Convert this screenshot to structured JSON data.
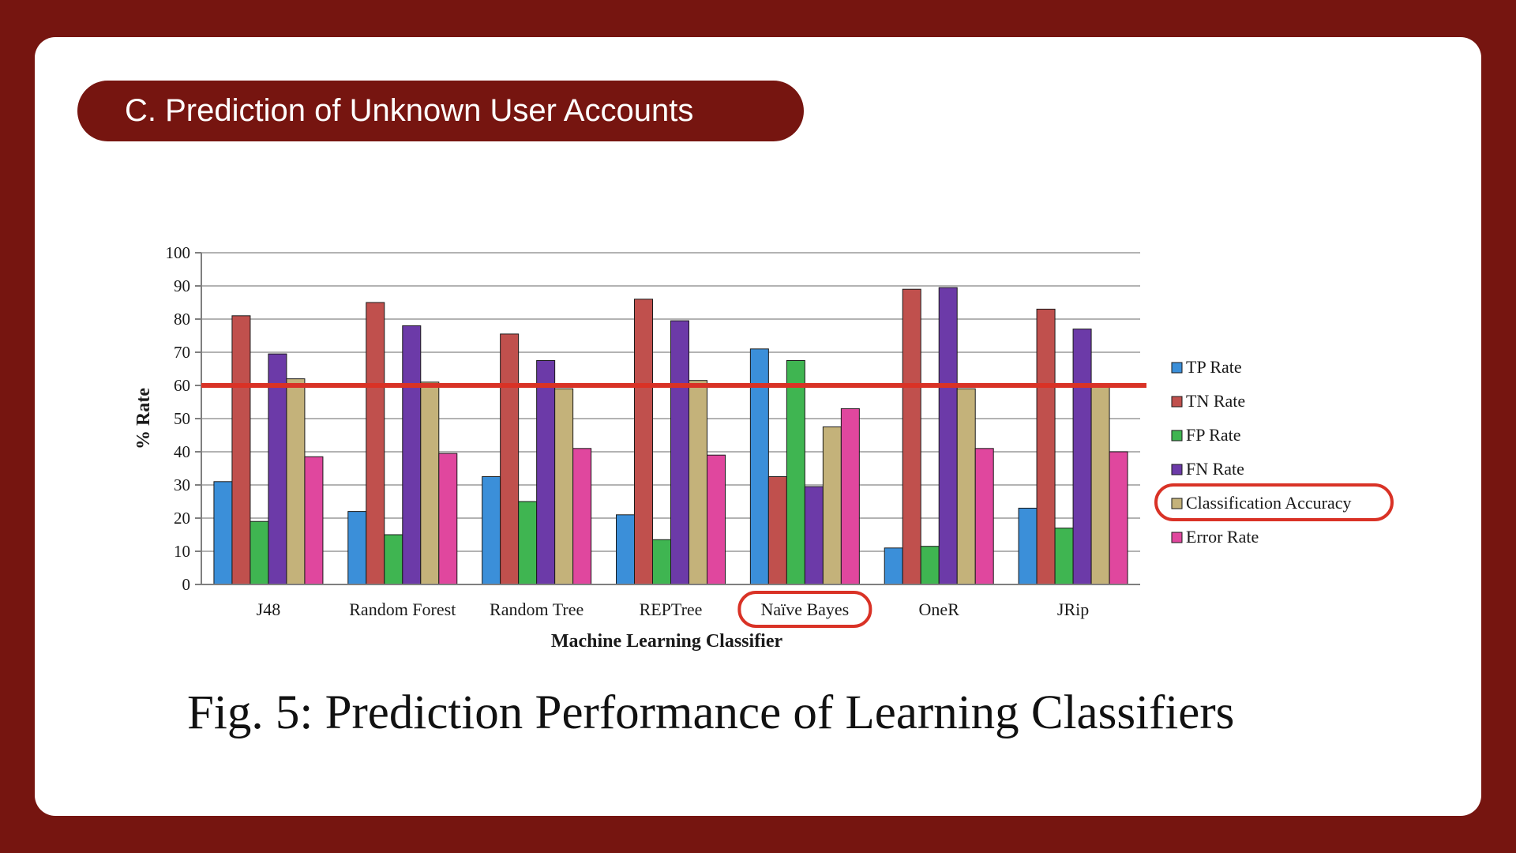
{
  "slide": {
    "section_title": "C. Prediction of Unknown User Accounts",
    "caption": "Fig. 5: Prediction Performance of Learning Classifiers",
    "background_color": "#761510"
  },
  "chart_data": {
    "type": "bar",
    "title": "",
    "xlabel": "Machine Learning Classifier",
    "ylabel": "% Rate",
    "ylim": [
      0,
      100
    ],
    "yticks": [
      0,
      10,
      20,
      30,
      40,
      50,
      60,
      70,
      80,
      90,
      100
    ],
    "grid": true,
    "legend_position": "right",
    "categories": [
      "J48",
      "Random Forest",
      "Random Tree",
      "REPTree",
      "Naïve Bayes",
      "OneR",
      "JRip"
    ],
    "series": [
      {
        "name": "TP Rate",
        "color": "#3b8fd9",
        "values": [
          31,
          22,
          32.5,
          21,
          71,
          11,
          23
        ]
      },
      {
        "name": "TN Rate",
        "color": "#c0504d",
        "values": [
          81,
          85,
          75.5,
          86,
          32.5,
          89,
          83
        ]
      },
      {
        "name": "FP Rate",
        "color": "#3fb551",
        "values": [
          19,
          15,
          25,
          13.5,
          67.5,
          11.5,
          17
        ]
      },
      {
        "name": "FN Rate",
        "color": "#6c3aa8",
        "values": [
          69.5,
          78,
          67.5,
          79.5,
          29.5,
          89.5,
          77
        ]
      },
      {
        "name": "Classification Accuracy",
        "color": "#c4b27a",
        "values": [
          62,
          61,
          59,
          61.5,
          47.5,
          59,
          60
        ]
      },
      {
        "name": "Error Rate",
        "color": "#e0479e",
        "values": [
          38.5,
          39.5,
          41,
          39,
          53,
          41,
          40
        ]
      }
    ],
    "reference_line": {
      "value": 60,
      "color": "#d93226"
    },
    "highlights": {
      "category": "Naïve Bayes",
      "legend_entry": "Classification Accuracy",
      "color": "#d93226"
    }
  }
}
